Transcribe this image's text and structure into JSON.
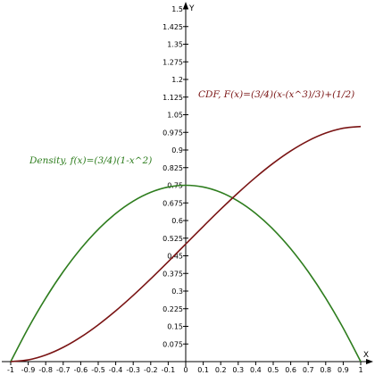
{
  "chart_data": {
    "type": "line",
    "xlabel": "X",
    "ylabel": "Y",
    "xlim": [
      -1,
      1
    ],
    "ylim": [
      0,
      1.5
    ],
    "grid": false,
    "x_ticks": [
      -1,
      -0.9,
      -0.8,
      -0.7,
      -0.6,
      -0.5,
      -0.4,
      -0.3,
      -0.2,
      -0.1,
      0,
      0.1,
      0.2,
      0.3,
      0.4,
      0.5,
      0.6,
      0.7,
      0.8,
      0.9,
      1
    ],
    "x_tick_labels": [
      "-1",
      "-0.9",
      "-0.8",
      "-0.7",
      "-0.6",
      "-0.5",
      "-0.4",
      "-0.3",
      "-0.2",
      "-0.1",
      "0",
      "0.1",
      "0.2",
      "0.3",
      "0.4",
      "0.5",
      "0.6",
      "0.7",
      "0.8",
      "0.9",
      "1"
    ],
    "y_ticks": [
      0.075,
      0.15,
      0.225,
      0.3,
      0.375,
      0.45,
      0.525,
      0.6,
      0.675,
      0.75,
      0.825,
      0.9,
      0.975,
      1.05,
      1.125,
      1.2,
      1.275,
      1.35,
      1.425,
      1.5
    ],
    "y_tick_labels": [
      "0.075",
      "0.15",
      "0.225",
      "0.3",
      "0.375",
      "0.45",
      "0.525",
      "0.6",
      "0.675",
      "0.75",
      "0.825",
      "0.9",
      "0.975",
      "1.05",
      "1.125",
      "1.2",
      "1.275",
      "1.35",
      "1.425",
      "1.5"
    ],
    "series": [
      {
        "name": "Density, f(x)=(3/4)(1-x^2)",
        "color": "#2e7d1e",
        "x": [
          -1,
          -0.9,
          -0.8,
          -0.7,
          -0.6,
          -0.5,
          -0.4,
          -0.3,
          -0.2,
          -0.1,
          0,
          0.1,
          0.2,
          0.3,
          0.4,
          0.5,
          0.6,
          0.7,
          0.8,
          0.9,
          1
        ],
        "y": [
          0,
          0.1425,
          0.27,
          0.3825,
          0.48,
          0.5625,
          0.63,
          0.6825,
          0.72,
          0.7425,
          0.75,
          0.7425,
          0.72,
          0.6825,
          0.63,
          0.5625,
          0.48,
          0.3825,
          0.27,
          0.1425,
          0
        ]
      },
      {
        "name": "CDF, F(x)=(3/4)(x-(x^3)/3)+(1/2)",
        "color": "#7a1414",
        "x": [
          -1,
          -0.9,
          -0.8,
          -0.7,
          -0.6,
          -0.5,
          -0.4,
          -0.3,
          -0.2,
          -0.1,
          0,
          0.1,
          0.2,
          0.3,
          0.4,
          0.5,
          0.6,
          0.7,
          0.8,
          0.9,
          1
        ],
        "y": [
          0,
          0.00725,
          0.028,
          0.06075,
          0.104,
          0.15625,
          0.216,
          0.28175,
          0.352,
          0.42525,
          0.5,
          0.57475,
          0.648,
          0.71825,
          0.784,
          0.84375,
          0.896,
          0.93925,
          0.972,
          0.99275,
          1
        ]
      }
    ]
  }
}
